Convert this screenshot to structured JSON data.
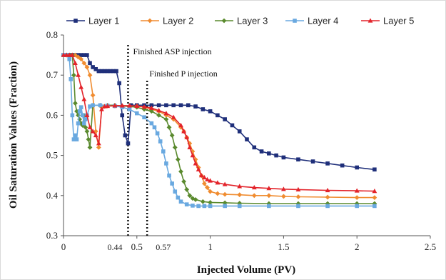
{
  "chart_data": {
    "type": "line",
    "title": "",
    "xlabel": "Injected Volume (PV)",
    "ylabel": "Oil Saturation Values (Fraction)",
    "xlim": [
      0,
      2.5
    ],
    "ylim": [
      0.3,
      0.8
    ],
    "xticks": [
      "0",
      "0.5",
      "1",
      "1.5",
      "2",
      "2.5"
    ],
    "yticks": [
      "0.3",
      "0.4",
      "0.5",
      "0.6",
      "0.7",
      "0.8"
    ],
    "legend_position": "top",
    "grid": false,
    "annotations": {
      "asp_label": "Finished ASP injection",
      "asp_x": 0.44,
      "asp_x_label": "0.44",
      "p_label": "Finished P injection",
      "p_x": 0.57,
      "p_x_label": "0.57"
    },
    "series": [
      {
        "name": "Layer 1",
        "color": "#1f2f7a",
        "marker": "square",
        "x": [
          0,
          0.02,
          0.04,
          0.06,
          0.08,
          0.1,
          0.12,
          0.14,
          0.16,
          0.18,
          0.2,
          0.22,
          0.24,
          0.26,
          0.28,
          0.3,
          0.32,
          0.34,
          0.36,
          0.38,
          0.4,
          0.42,
          0.44,
          0.46,
          0.5,
          0.55,
          0.6,
          0.65,
          0.7,
          0.75,
          0.8,
          0.85,
          0.9,
          0.95,
          1.0,
          1.05,
          1.1,
          1.15,
          1.2,
          1.25,
          1.3,
          1.35,
          1.4,
          1.45,
          1.5,
          1.6,
          1.7,
          1.8,
          1.9,
          2.0,
          2.12
        ],
        "y": [
          0.75,
          0.75,
          0.75,
          0.75,
          0.75,
          0.75,
          0.75,
          0.75,
          0.75,
          0.73,
          0.72,
          0.715,
          0.71,
          0.71,
          0.71,
          0.71,
          0.71,
          0.71,
          0.71,
          0.68,
          0.6,
          0.55,
          0.53,
          0.625,
          0.625,
          0.625,
          0.625,
          0.625,
          0.625,
          0.625,
          0.625,
          0.625,
          0.622,
          0.615,
          0.61,
          0.6,
          0.59,
          0.575,
          0.56,
          0.54,
          0.52,
          0.51,
          0.505,
          0.5,
          0.495,
          0.49,
          0.485,
          0.48,
          0.475,
          0.47,
          0.465
        ]
      },
      {
        "name": "Layer 2",
        "color": "#f08c30",
        "marker": "diamond",
        "x": [
          0,
          0.02,
          0.04,
          0.06,
          0.08,
          0.1,
          0.12,
          0.14,
          0.16,
          0.18,
          0.2,
          0.22,
          0.24,
          0.26,
          0.28,
          0.3,
          0.35,
          0.4,
          0.45,
          0.5,
          0.55,
          0.6,
          0.65,
          0.7,
          0.75,
          0.8,
          0.82,
          0.84,
          0.86,
          0.88,
          0.9,
          0.92,
          0.94,
          0.96,
          0.98,
          1.0,
          1.05,
          1.1,
          1.2,
          1.3,
          1.4,
          1.5,
          1.6,
          1.8,
          2.0,
          2.12
        ],
        "y": [
          0.75,
          0.75,
          0.75,
          0.75,
          0.75,
          0.745,
          0.74,
          0.73,
          0.72,
          0.7,
          0.65,
          0.56,
          0.52,
          0.62,
          0.622,
          0.623,
          0.623,
          0.623,
          0.623,
          0.623,
          0.62,
          0.615,
          0.61,
          0.6,
          0.59,
          0.57,
          0.56,
          0.545,
          0.53,
          0.51,
          0.49,
          0.47,
          0.45,
          0.43,
          0.42,
          0.41,
          0.405,
          0.403,
          0.402,
          0.4,
          0.4,
          0.398,
          0.397,
          0.396,
          0.395,
          0.395
        ]
      },
      {
        "name": "Layer 3",
        "color": "#5a8a2e",
        "marker": "diamond",
        "x": [
          0,
          0.02,
          0.04,
          0.06,
          0.07,
          0.08,
          0.09,
          0.1,
          0.11,
          0.12,
          0.13,
          0.14,
          0.15,
          0.16,
          0.17,
          0.18,
          0.2,
          0.25,
          0.3,
          0.35,
          0.4,
          0.45,
          0.5,
          0.55,
          0.6,
          0.65,
          0.7,
          0.72,
          0.74,
          0.76,
          0.78,
          0.8,
          0.82,
          0.84,
          0.86,
          0.88,
          0.9,
          0.95,
          1.0,
          1.1,
          1.2,
          1.4,
          1.6,
          1.8,
          2.0,
          2.12
        ],
        "y": [
          0.75,
          0.75,
          0.75,
          0.75,
          0.7,
          0.63,
          0.61,
          0.6,
          0.59,
          0.58,
          0.575,
          0.6,
          0.57,
          0.56,
          0.54,
          0.52,
          0.625,
          0.625,
          0.625,
          0.625,
          0.623,
          0.622,
          0.62,
          0.615,
          0.61,
          0.6,
          0.59,
          0.57,
          0.55,
          0.52,
          0.49,
          0.46,
          0.435,
          0.415,
          0.4,
          0.393,
          0.39,
          0.385,
          0.383,
          0.382,
          0.381,
          0.38,
          0.38,
          0.38,
          0.38,
          0.38
        ]
      },
      {
        "name": "Layer 4",
        "color": "#6aa9e0",
        "marker": "square",
        "x": [
          0,
          0.02,
          0.04,
          0.05,
          0.06,
          0.07,
          0.08,
          0.09,
          0.1,
          0.11,
          0.12,
          0.13,
          0.14,
          0.15,
          0.16,
          0.18,
          0.2,
          0.25,
          0.3,
          0.35,
          0.4,
          0.45,
          0.5,
          0.55,
          0.6,
          0.62,
          0.64,
          0.66,
          0.68,
          0.7,
          0.72,
          0.74,
          0.76,
          0.78,
          0.8,
          0.84,
          0.88,
          0.92,
          0.96,
          1.0,
          1.1,
          1.2,
          1.4,
          1.6,
          1.8,
          2.0,
          2.12
        ],
        "y": [
          0.75,
          0.75,
          0.74,
          0.69,
          0.6,
          0.54,
          0.55,
          0.54,
          0.58,
          0.61,
          0.62,
          0.6,
          0.58,
          0.59,
          0.6,
          0.622,
          0.625,
          0.625,
          0.624,
          0.623,
          0.62,
          0.615,
          0.605,
          0.595,
          0.58,
          0.57,
          0.555,
          0.535,
          0.51,
          0.48,
          0.45,
          0.43,
          0.41,
          0.395,
          0.385,
          0.378,
          0.375,
          0.374,
          0.374,
          0.374,
          0.374,
          0.374,
          0.374,
          0.374,
          0.374,
          0.374,
          0.374
        ]
      },
      {
        "name": "Layer 5",
        "color": "#e3242b",
        "marker": "triangle",
        "x": [
          0,
          0.02,
          0.04,
          0.06,
          0.08,
          0.1,
          0.12,
          0.14,
          0.16,
          0.18,
          0.2,
          0.22,
          0.24,
          0.26,
          0.28,
          0.3,
          0.35,
          0.4,
          0.45,
          0.5,
          0.55,
          0.6,
          0.65,
          0.7,
          0.75,
          0.8,
          0.82,
          0.84,
          0.86,
          0.88,
          0.9,
          0.92,
          0.94,
          0.96,
          0.98,
          1.0,
          1.05,
          1.1,
          1.2,
          1.3,
          1.4,
          1.5,
          1.6,
          1.8,
          2.0,
          2.12
        ],
        "y": [
          0.75,
          0.75,
          0.75,
          0.75,
          0.73,
          0.7,
          0.67,
          0.64,
          0.6,
          0.57,
          0.56,
          0.55,
          0.53,
          0.615,
          0.622,
          0.623,
          0.624,
          0.624,
          0.624,
          0.623,
          0.621,
          0.618,
          0.612,
          0.605,
          0.595,
          0.575,
          0.56,
          0.545,
          0.52,
          0.5,
          0.48,
          0.465,
          0.45,
          0.445,
          0.44,
          0.437,
          0.432,
          0.428,
          0.423,
          0.42,
          0.418,
          0.416,
          0.415,
          0.413,
          0.412,
          0.411
        ]
      }
    ]
  }
}
